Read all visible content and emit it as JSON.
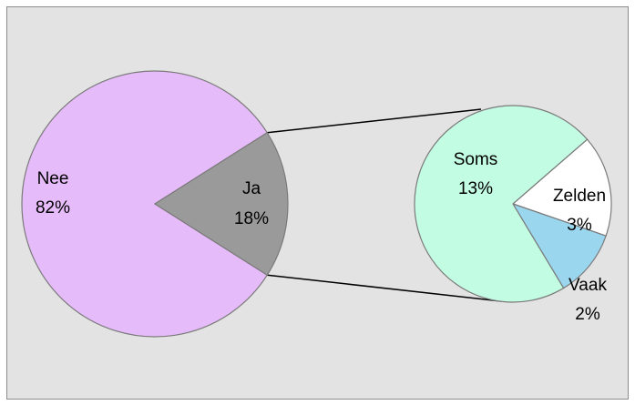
{
  "chart_data": {
    "type": "bar-of-pie",
    "main_pie": {
      "slices": [
        {
          "label": "Nee",
          "percent_label": "82%",
          "value": 82,
          "color": "#e6bbf9"
        },
        {
          "label": "Ja",
          "percent_label": "18%",
          "value": 18,
          "color": "#9a9a9a"
        }
      ]
    },
    "secondary_pie": {
      "expands": "Ja",
      "slices": [
        {
          "label": "Soms",
          "percent_label": "13%",
          "value": 13,
          "color": "#c2fce3"
        },
        {
          "label": "Zelden",
          "percent_label": "3%",
          "value": 3,
          "color": "#ffffff"
        },
        {
          "label": "Vaak",
          "percent_label": "2%",
          "value": 2,
          "color": "#9ad7ef"
        }
      ]
    },
    "border_color": "#7a7a7a",
    "background_color": "#e3e3e3"
  }
}
